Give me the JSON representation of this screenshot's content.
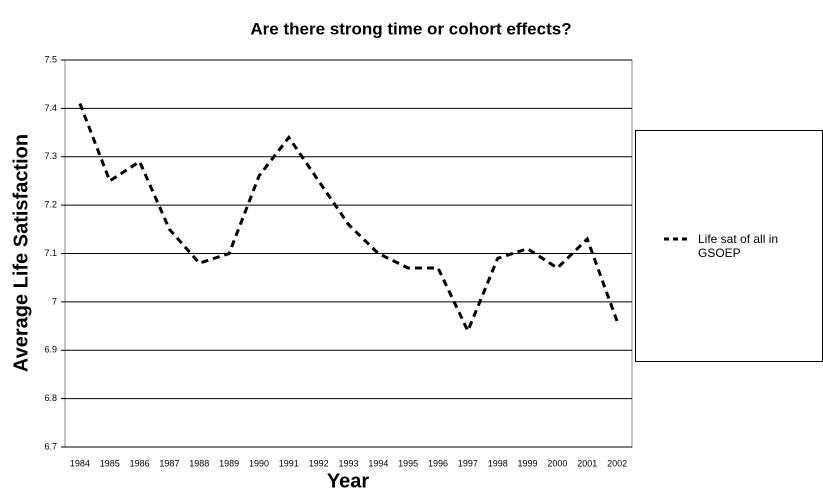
{
  "chart_data": {
    "type": "line",
    "title": "Are there strong time or cohort effects?",
    "x_label": "Year",
    "y_label": "Average Life Satisfaction",
    "categories": [
      "1984",
      "1985",
      "1986",
      "1987",
      "1988",
      "1989",
      "1990",
      "1991",
      "1992",
      "1993",
      "1994",
      "1995",
      "1996",
      "1997",
      "1998",
      "1999",
      "2000",
      "2001",
      "2002"
    ],
    "series": [
      {
        "name": "Life sat of all in GSOEP",
        "color": "#000000",
        "values": [
          7.41,
          7.25,
          7.29,
          7.15,
          7.08,
          7.1,
          7.26,
          7.34,
          7.25,
          7.16,
          7.1,
          7.07,
          7.07,
          6.94,
          7.09,
          7.11,
          7.07,
          7.13,
          6.96
        ]
      }
    ],
    "ylim": [
      6.7,
      7.5
    ],
    "yticks": [
      6.7,
      6.8,
      6.9,
      7,
      7.1,
      7.2,
      7.3,
      7.4,
      7.5
    ],
    "grid": true,
    "legend": "right"
  }
}
